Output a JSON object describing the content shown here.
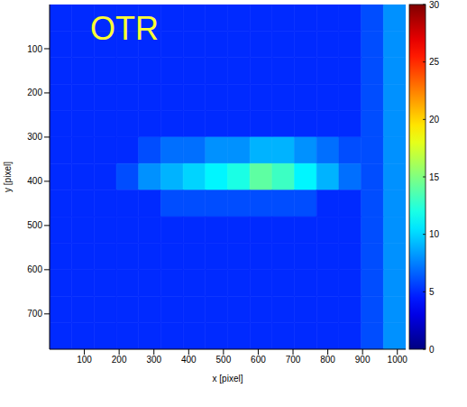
{
  "chart_data": {
    "type": "heatmap",
    "annotation": "OTR",
    "x_label": "x [pixel]",
    "y_label": "y [pixel]",
    "xlim": [
      0,
      1024
    ],
    "ylim": [
      0,
      780
    ],
    "xticks": [
      100,
      200,
      300,
      400,
      500,
      600,
      700,
      800,
      900,
      1000
    ],
    "yticks": [
      100,
      200,
      300,
      400,
      500,
      600,
      700
    ],
    "x_edges": [
      0,
      64,
      128,
      192,
      256,
      320,
      384,
      448,
      512,
      576,
      640,
      704,
      768,
      832,
      896,
      960,
      1024
    ],
    "y_edges": [
      0,
      60,
      120,
      180,
      240,
      300,
      360,
      420,
      480,
      540,
      600,
      660,
      720,
      780
    ],
    "cells": [
      [
        5,
        5,
        5,
        5,
        5,
        5,
        5,
        5,
        5,
        5,
        5,
        5,
        5,
        5,
        6,
        8
      ],
      [
        5,
        5,
        5,
        5,
        5,
        5,
        5,
        5,
        5,
        5,
        5,
        5,
        5,
        5,
        6,
        8
      ],
      [
        5,
        5,
        5,
        5,
        5,
        5,
        5,
        5,
        5,
        5,
        5,
        5,
        5,
        5,
        6,
        8
      ],
      [
        5,
        5,
        5,
        5,
        5,
        5,
        5,
        5,
        5,
        5,
        5,
        5,
        5,
        5,
        6,
        8
      ],
      [
        5,
        5,
        5,
        5,
        5,
        5,
        5,
        5,
        5,
        5,
        5,
        5,
        5,
        5,
        6,
        8
      ],
      [
        5,
        5,
        5,
        5,
        6,
        7,
        7,
        8,
        8,
        9,
        9,
        8,
        7,
        6,
        6,
        8
      ],
      [
        5,
        5,
        5,
        6,
        8,
        9,
        10,
        11,
        12,
        14,
        13,
        11,
        9,
        7,
        6,
        8
      ],
      [
        5,
        5,
        5,
        5,
        5,
        6,
        6,
        6,
        6,
        6,
        6,
        6,
        5,
        5,
        6,
        8
      ],
      [
        5,
        5,
        5,
        5,
        5,
        5,
        5,
        5,
        5,
        5,
        5,
        5,
        5,
        5,
        6,
        8
      ],
      [
        5,
        5,
        5,
        5,
        5,
        5,
        5,
        5,
        5,
        5,
        5,
        5,
        5,
        5,
        6,
        8
      ],
      [
        5,
        5,
        5,
        5,
        5,
        5,
        5,
        5,
        5,
        5,
        5,
        5,
        5,
        5,
        6,
        8
      ],
      [
        5,
        5,
        5,
        5,
        5,
        5,
        5,
        5,
        5,
        5,
        5,
        5,
        5,
        5,
        6,
        8
      ],
      [
        5,
        5,
        5,
        5,
        5,
        5,
        5,
        5,
        5,
        5,
        5,
        5,
        5,
        5,
        6,
        8
      ]
    ],
    "colorbar_range": [
      0,
      30
    ],
    "colorbar_ticks": [
      0,
      5,
      10,
      15,
      20,
      25,
      30
    ]
  }
}
